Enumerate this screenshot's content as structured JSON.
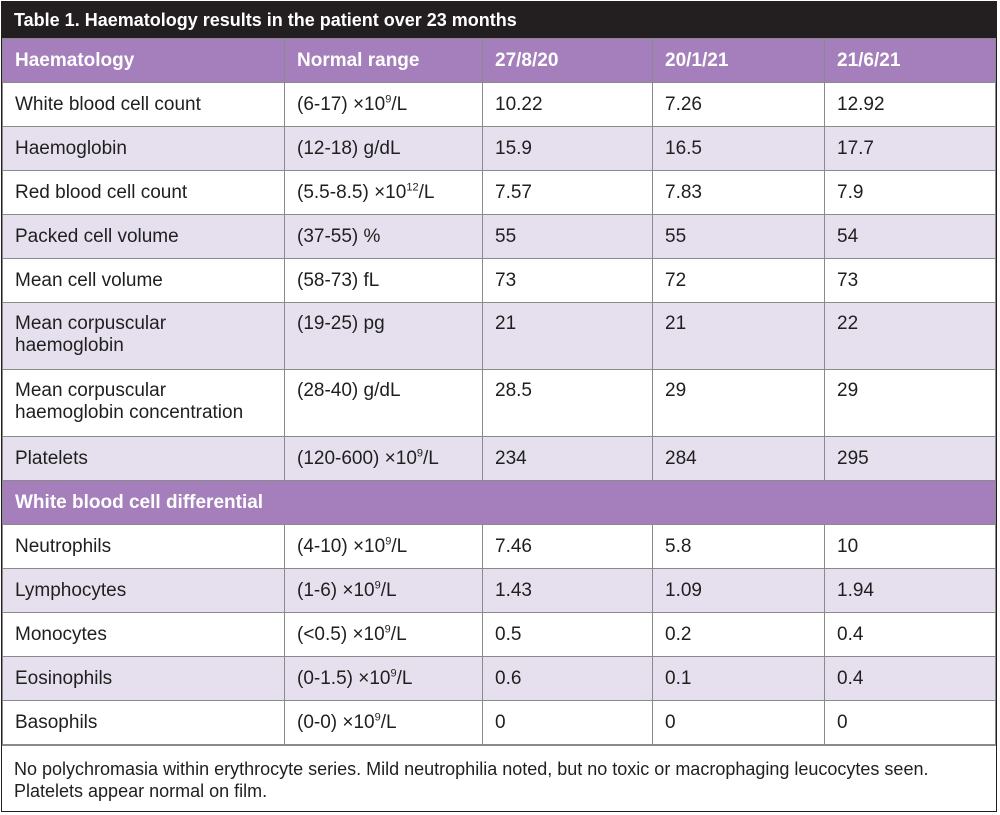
{
  "caption": "Table 1. Haematology results in the patient over 23 months",
  "columns": [
    "Haematology",
    "Normal range",
    "27/8/20",
    "20/1/21",
    "21/6/21"
  ],
  "haematology_rows": [
    {
      "name": "White blood cell count",
      "range_pre": "(6-17) ×10",
      "range_sup": "9",
      "range_post": "/L",
      "v1": "10.22",
      "v2": "7.26",
      "v3": "12.92"
    },
    {
      "name": "Haemoglobin",
      "range_pre": "(12-18) g/dL",
      "range_sup": "",
      "range_post": "",
      "v1": "15.9",
      "v2": "16.5",
      "v3": "17.7"
    },
    {
      "name": "Red blood cell count",
      "range_pre": "(5.5-8.5) ×10",
      "range_sup": "12",
      "range_post": "/L",
      "v1": "7.57",
      "v2": "7.83",
      "v3": "7.9"
    },
    {
      "name": "Packed cell volume",
      "range_pre": "(37-55) %",
      "range_sup": "",
      "range_post": "",
      "v1": "55",
      "v2": "55",
      "v3": "54"
    },
    {
      "name": "Mean cell volume",
      "range_pre": "(58-73) fL",
      "range_sup": "",
      "range_post": "",
      "v1": "73",
      "v2": "72",
      "v3": "73"
    },
    {
      "name": "Mean corpuscular haemoglobin",
      "range_pre": "(19-25) pg",
      "range_sup": "",
      "range_post": "",
      "v1": "21",
      "v2": "21",
      "v3": "22"
    },
    {
      "name": "Mean corpuscular haemoglobin concentration",
      "range_pre": "(28-40) g/dL",
      "range_sup": "",
      "range_post": "",
      "v1": "28.5",
      "v2": "29",
      "v3": "29"
    },
    {
      "name": "Platelets",
      "range_pre": "(120-600) ×10",
      "range_sup": "9",
      "range_post": "/L",
      "v1": "234",
      "v2": "284",
      "v3": "295"
    }
  ],
  "differential_heading": "White blood cell differential",
  "differential_rows": [
    {
      "name": "Neutrophils",
      "range_pre": "(4-10) ×10",
      "range_sup": "9",
      "range_post": "/L",
      "v1": "7.46",
      "v2": "5.8",
      "v3": "10"
    },
    {
      "name": "Lymphocytes",
      "range_pre": "(1-6) ×10",
      "range_sup": "9",
      "range_post": "/L",
      "v1": "1.43",
      "v2": "1.09",
      "v3": "1.94"
    },
    {
      "name": "Monocytes",
      "range_pre": "(<0.5) ×10",
      "range_sup": "9",
      "range_post": "/L",
      "v1": "0.5",
      "v2": "0.2",
      "v3": "0.4"
    },
    {
      "name": "Eosinophils",
      "range_pre": "(0-1.5) ×10",
      "range_sup": "9",
      "range_post": "/L",
      "v1": "0.6",
      "v2": "0.1",
      "v3": "0.4"
    },
    {
      "name": "Basophils",
      "range_pre": "(0-0) ×10",
      "range_sup": "9",
      "range_post": "/L",
      "v1": "0",
      "v2": "0",
      "v3": "0"
    }
  ],
  "footnote": "No polychromasia within erythrocyte series. Mild neutrophilia noted, but no toxic or macrophaging leucocytes seen. Platelets appear normal on film.",
  "colors": {
    "caption_bg": "#231f20",
    "header_bg": "#a47fbb",
    "stripe_bg": "#e6e0ee"
  }
}
